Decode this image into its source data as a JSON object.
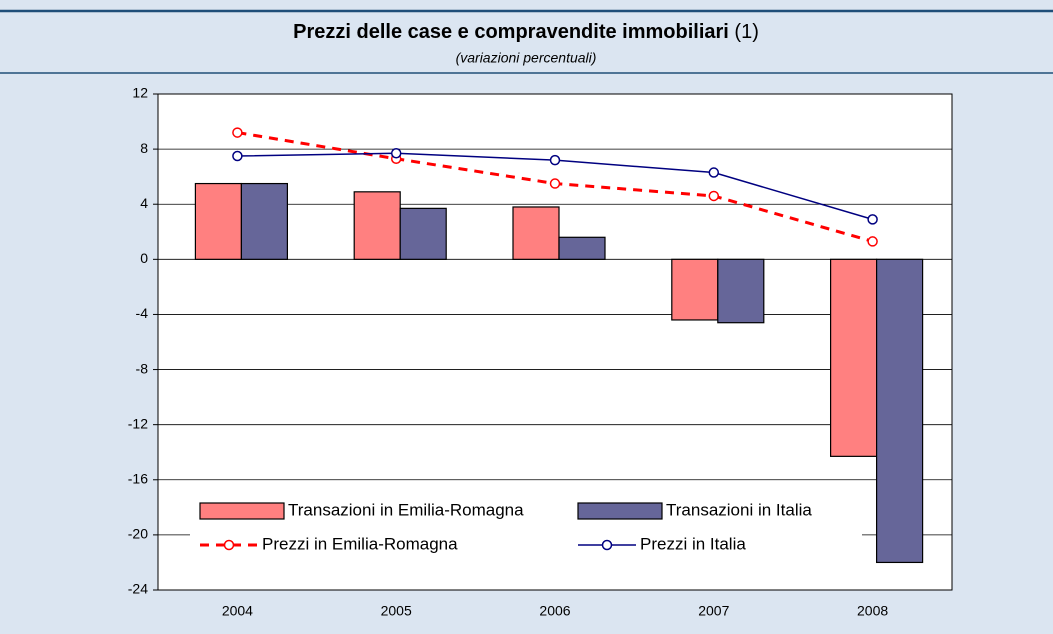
{
  "chart_data": {
    "type": "bar",
    "title": "Prezzi delle case e compravendite immobiliari",
    "title_note": "(1)",
    "subtitle": "(variazioni percentuali)",
    "categories": [
      "2004",
      "2005",
      "2006",
      "2007",
      "2008"
    ],
    "series": [
      {
        "name": "Transazioni in Emilia-Romagna",
        "type": "bar",
        "color": "#ff8080",
        "values": [
          5.5,
          4.9,
          3.8,
          -4.4,
          -14.3
        ]
      },
      {
        "name": "Transazioni in Italia",
        "type": "bar",
        "color": "#666699",
        "values": [
          5.5,
          3.7,
          1.6,
          -4.6,
          -22.0
        ]
      },
      {
        "name": "Prezzi in Emilia-Romagna",
        "type": "line",
        "dashed": true,
        "color": "#ff0000",
        "values": [
          9.2,
          7.3,
          5.5,
          4.6,
          1.3
        ]
      },
      {
        "name": "Prezzi in Italia",
        "type": "line",
        "dashed": false,
        "color": "#000080",
        "values": [
          7.5,
          7.7,
          7.2,
          6.3,
          2.9
        ]
      }
    ],
    "ylim": [
      -24,
      12
    ],
    "yticks": [
      -24,
      -20,
      -16,
      -12,
      -8,
      -4,
      0,
      4,
      8,
      12
    ],
    "grid": true,
    "legend": "bottom-left"
  }
}
